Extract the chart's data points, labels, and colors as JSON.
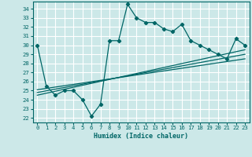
{
  "xlabel": "Humidex (Indice chaleur)",
  "ylabel": "",
  "xlim": [
    -0.5,
    23.5
  ],
  "ylim": [
    21.5,
    34.8
  ],
  "yticks": [
    22,
    23,
    24,
    25,
    26,
    27,
    28,
    29,
    30,
    31,
    32,
    33,
    34
  ],
  "xticks": [
    0,
    1,
    2,
    3,
    4,
    5,
    6,
    7,
    8,
    9,
    10,
    11,
    12,
    13,
    14,
    15,
    16,
    17,
    18,
    19,
    20,
    21,
    22,
    23
  ],
  "bg_color": "#cce8e8",
  "line_color": "#006666",
  "grid_color": "#ffffff",
  "main_line_x": [
    0,
    1,
    2,
    3,
    4,
    5,
    6,
    7,
    8,
    9,
    10,
    11,
    12,
    13,
    14,
    15,
    16,
    17,
    18,
    19,
    20,
    21,
    22,
    23
  ],
  "main_line_y": [
    30,
    25.5,
    24.5,
    25,
    25,
    24,
    22.2,
    23.5,
    30.5,
    30.5,
    34.5,
    33,
    32.5,
    32.5,
    31.8,
    31.5,
    32.3,
    30.5,
    30,
    29.5,
    29,
    28.5,
    30.7,
    30
  ],
  "reg_line1_x": [
    0,
    23
  ],
  "reg_line1_y": [
    24.5,
    29.5
  ],
  "reg_line2_x": [
    0,
    23
  ],
  "reg_line2_y": [
    24.8,
    29.0
  ],
  "reg_line3_x": [
    0,
    23
  ],
  "reg_line3_y": [
    25.1,
    28.5
  ],
  "xlabel_fontsize": 6.0,
  "tick_fontsize": 5.2
}
